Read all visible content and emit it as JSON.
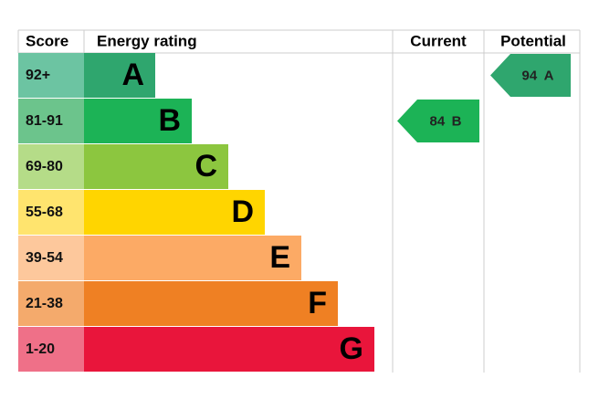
{
  "header": {
    "score": "Score",
    "rating": "Energy rating",
    "current": "Current",
    "potential": "Potential"
  },
  "bands": [
    {
      "score": "92+",
      "letter": "A",
      "color": "#2fa66e",
      "light": "#6cc4a2"
    },
    {
      "score": "81-91",
      "letter": "B",
      "color": "#1cb356",
      "light": "#6cc48c"
    },
    {
      "score": "69-80",
      "letter": "C",
      "color": "#8cc63f",
      "light": "#b5dc88"
    },
    {
      "score": "55-68",
      "letter": "D",
      "color": "#ffd500",
      "light": "#ffe46e"
    },
    {
      "score": "39-54",
      "letter": "E",
      "color": "#fcaa65",
      "light": "#fdc89c"
    },
    {
      "score": "21-38",
      "letter": "F",
      "color": "#ef8023",
      "light": "#f4aa6c"
    },
    {
      "score": "1-20",
      "letter": "G",
      "color": "#e9153b",
      "light": "#ef7088"
    }
  ],
  "current": {
    "value": 84,
    "letter": "B"
  },
  "potential": {
    "value": 94,
    "letter": "A"
  }
}
